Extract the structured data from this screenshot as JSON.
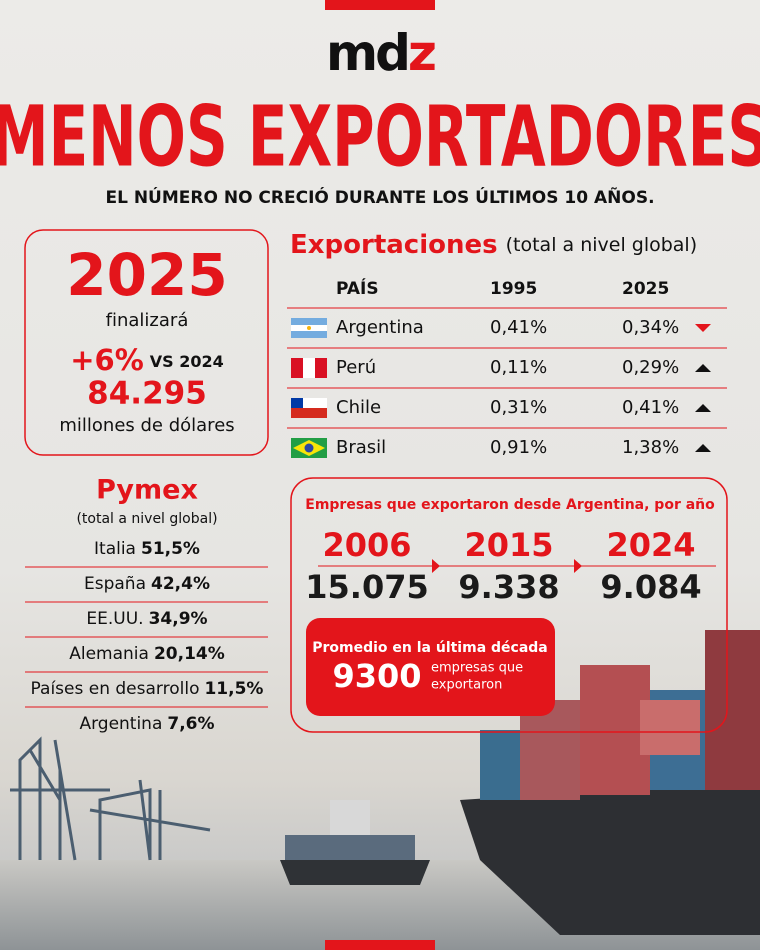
{
  "logo": {
    "text": "md",
    "accent": "z"
  },
  "title": "MENOS EXPORTADORES",
  "subtitle": "EL NÚMERO NO CRECIÓ DURANTE LOS ÚLTIMOS 10 AÑOS.",
  "summary": {
    "year": "2025",
    "verb": "finalizará",
    "change": "+6%",
    "comparison": "VS 2024",
    "amount": "84.295",
    "unit": "millones de dólares"
  },
  "exports": {
    "title": "Exportaciones",
    "note": "(total a nivel global)",
    "header": [
      "PAÍS",
      "1995",
      "2025"
    ],
    "rows": [
      {
        "country": "Argentina",
        "v1995": "0,41%",
        "v2025": "0,34%",
        "trend": "down"
      },
      {
        "country": "Perú",
        "v1995": "0,11%",
        "v2025": "0,29%",
        "trend": "up"
      },
      {
        "country": "Chile",
        "v1995": "0,31%",
        "v2025": "0,41%",
        "trend": "up"
      },
      {
        "country": "Brasil",
        "v1995": "0,91%",
        "v2025": "1,38%",
        "trend": "up"
      }
    ]
  },
  "pymex": {
    "title": "Pymex",
    "note": "(total a nivel global)",
    "rows": [
      {
        "country": "Italia",
        "value": "51,5%"
      },
      {
        "country": "España",
        "value": "42,4%"
      },
      {
        "country": "EE.UU.",
        "value": "34,9%"
      },
      {
        "country": "Alemania",
        "value": "20,14%"
      },
      {
        "country": "Países en desarrollo",
        "value": "11,5%"
      },
      {
        "country": "Argentina",
        "value": "7,6%"
      }
    ]
  },
  "companies": {
    "title": "Empresas que exportaron desde Argentina, por año",
    "years": [
      {
        "year": "2006",
        "count": "15.075"
      },
      {
        "year": "2015",
        "count": "9.338"
      },
      {
        "year": "2024",
        "count": "9.084"
      }
    ],
    "average": {
      "label": "Promedio en la última década",
      "value": "9300",
      "unit": [
        "empresas que",
        "exportaron"
      ]
    }
  }
}
